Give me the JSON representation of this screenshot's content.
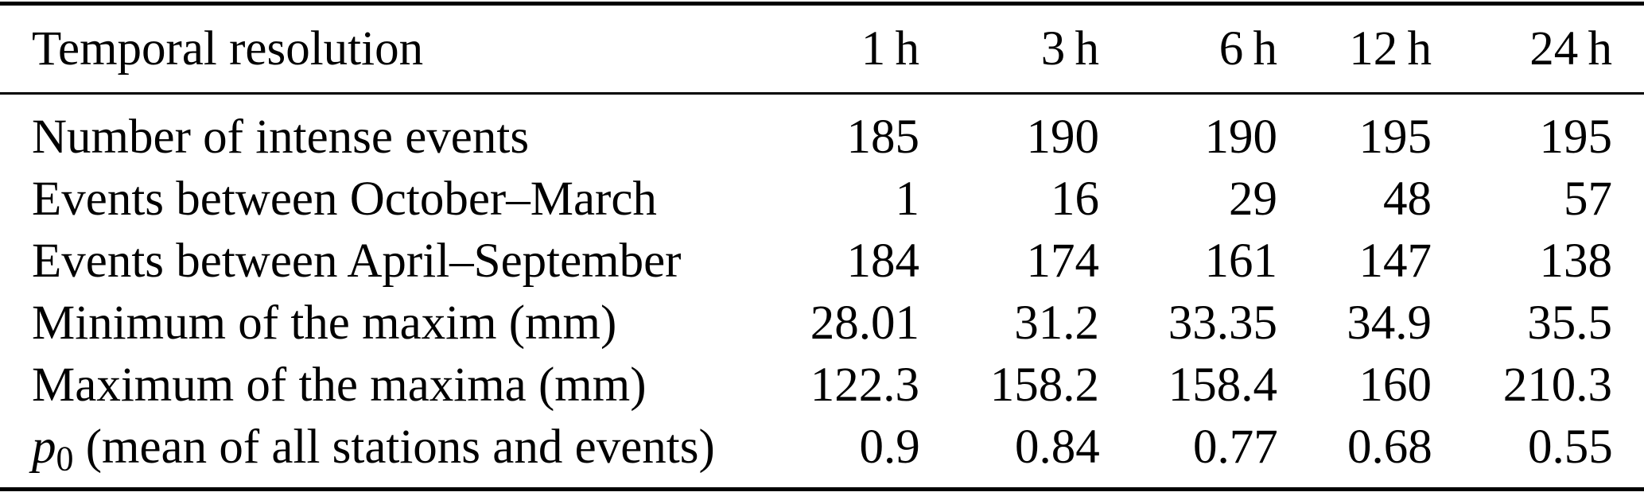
{
  "page": {
    "background": "#ffffff",
    "text_color": "#000000"
  },
  "table": {
    "header": {
      "label": "Temporal resolution",
      "columns": [
        "1 h",
        "3 h",
        "6 h",
        "12 h",
        "24 h"
      ]
    },
    "rows": [
      {
        "label": "Number of intense events",
        "values": [
          "185",
          "190",
          "190",
          "195",
          "195"
        ]
      },
      {
        "label": "Events between October–March",
        "values": [
          "1",
          "16",
          "29",
          "48",
          "57"
        ]
      },
      {
        "label": "Events between April–September",
        "values": [
          "184",
          "174",
          "161",
          "147",
          "138"
        ]
      },
      {
        "label": "Minimum of the maxim (mm)",
        "values": [
          "28.01",
          "31.2",
          "33.35",
          "34.9",
          "35.5"
        ]
      },
      {
        "label": "Maximum of the maxima (mm)",
        "values": [
          "122.3",
          "158.2",
          "158.4",
          "160",
          "210.3"
        ]
      },
      {
        "label_var": "p",
        "label_var_sub": "0",
        "label_rest": " (mean of all stations and events)",
        "values": [
          "0.9",
          "0.84",
          "0.77",
          "0.68",
          "0.55"
        ]
      }
    ]
  }
}
